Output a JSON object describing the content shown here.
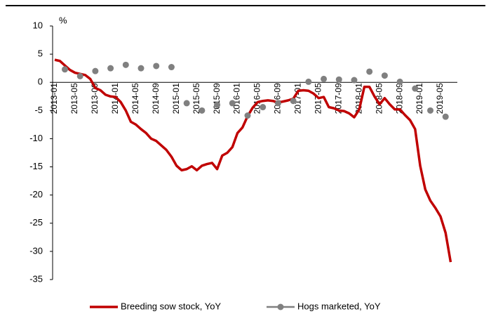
{
  "chart_data": {
    "type": "line",
    "ylabel": "%",
    "categories": [
      "2013-01",
      null,
      null,
      null,
      "2013-05",
      null,
      null,
      null,
      "2013-09",
      null,
      null,
      null,
      "2014-01",
      null,
      null,
      null,
      "2014-05",
      null,
      null,
      null,
      "2014-09",
      null,
      null,
      null,
      "2015-01",
      null,
      null,
      null,
      "2015-05",
      null,
      null,
      null,
      "2015-09",
      null,
      null,
      null,
      "2016-01",
      null,
      null,
      null,
      "2016-05",
      null,
      null,
      null,
      "2016-09",
      null,
      null,
      null,
      "2017-01",
      null,
      null,
      null,
      "2017-05",
      null,
      null,
      null,
      "2017-09",
      null,
      null,
      null,
      "2018-01",
      null,
      null,
      null,
      "2018-05",
      null,
      null,
      null,
      "2018-09",
      null,
      null,
      null,
      "2019-01",
      null,
      null,
      null,
      "2019-05",
      null,
      null
    ],
    "series": [
      {
        "name": "Breeding sow stock, YoY",
        "color": "#c00000",
        "style": "line",
        "values": [
          4.0,
          3.8,
          3.0,
          2.2,
          1.7,
          1.5,
          1.3,
          0.6,
          -1.0,
          -1.4,
          -2.2,
          -2.5,
          -2.6,
          -3.5,
          -5.0,
          -7.0,
          -7.5,
          -8.3,
          -9.0,
          -10.0,
          -10.4,
          -11.2,
          -12.0,
          -13.2,
          -14.8,
          -15.6,
          -15.4,
          -14.9,
          -15.6,
          -14.8,
          -14.5,
          -14.3,
          -15.4,
          -13.0,
          -12.5,
          -11.5,
          -9.0,
          -8.0,
          -6.0,
          -4.5,
          -3.5,
          -3.3,
          -3.2,
          -3.3,
          -3.6,
          -3.4,
          -3.2,
          -2.9,
          -1.5,
          -1.4,
          -1.5,
          -2.0,
          -2.8,
          -2.6,
          -4.4,
          -4.6,
          -5.0,
          -5.1,
          -5.5,
          -6.2,
          -4.8,
          -0.8,
          -0.8,
          -2.5,
          -3.9,
          -2.8,
          -3.9,
          -4.8,
          -4.8,
          -5.8,
          -6.7,
          -8.3,
          -14.8,
          -19.0,
          -21.0,
          -22.3,
          -23.8,
          -26.7,
          -31.9
        ]
      },
      {
        "name": "Hogs marketed, YoY",
        "color": "#808080",
        "style": "markers",
        "values": [
          null,
          null,
          2.3,
          null,
          null,
          1.1,
          null,
          null,
          2.0,
          null,
          null,
          2.5,
          null,
          null,
          3.1,
          null,
          null,
          2.5,
          null,
          null,
          2.9,
          null,
          null,
          2.7,
          null,
          null,
          -3.7,
          null,
          null,
          -5.0,
          null,
          null,
          -4.0,
          null,
          null,
          -3.7,
          null,
          null,
          -5.9,
          null,
          null,
          -4.4,
          null,
          null,
          -3.7,
          null,
          null,
          -3.3,
          null,
          null,
          0.1,
          null,
          null,
          0.6,
          null,
          null,
          0.5,
          null,
          null,
          0.4,
          null,
          null,
          1.9,
          null,
          null,
          1.2,
          null,
          null,
          0.1,
          null,
          null,
          -1.1,
          null,
          null,
          -5.0,
          null,
          null,
          -6.1,
          null
        ]
      }
    ],
    "ylim": [
      -35,
      10
    ],
    "yticks": [
      10,
      5,
      0,
      -5,
      -10,
      -15,
      -20,
      -25,
      -30,
      -35
    ]
  }
}
